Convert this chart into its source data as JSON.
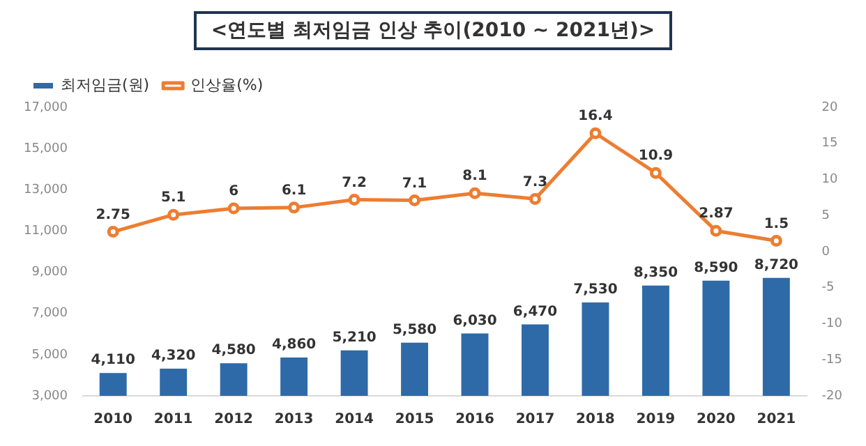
{
  "chart_data": {
    "type": "bar",
    "title": "<연도별 최저임금 인상 추이(2010 ~ 2021년)>",
    "categories": [
      "2010",
      "2011",
      "2012",
      "2013",
      "2014",
      "2015",
      "2016",
      "2017",
      "2018",
      "2019",
      "2020",
      "2021"
    ],
    "series": [
      {
        "name": "최저임금(원)",
        "color": "#2e6aa8",
        "values": [
          4110,
          4320,
          4580,
          4860,
          5210,
          5580,
          6030,
          6470,
          7530,
          8350,
          8590,
          8720
        ],
        "value_labels": [
          "4,110",
          "4,320",
          "4,580",
          "4,860",
          "5,210",
          "5,580",
          "6,030",
          "6,470",
          "7,530",
          "8,350",
          "8,590",
          "8,720"
        ]
      },
      {
        "name": "인상율(%)",
        "type": "line",
        "axis": "y2",
        "color": "#ed7d31",
        "marker": "circle",
        "values": [
          2.75,
          5.1,
          6,
          6.1,
          7.2,
          7.1,
          8.1,
          7.3,
          16.4,
          10.9,
          2.87,
          1.5
        ],
        "value_labels": [
          "2.75",
          "5.1",
          "6",
          "6.1",
          "7.2",
          "7.1",
          "8.1",
          "7.3",
          "16.4",
          "10.9",
          "2.87",
          "1.5"
        ]
      }
    ],
    "ylim": [
      3000,
      17000
    ],
    "yticks": [
      {
        "value": 3000,
        "label": "3,000"
      },
      {
        "value": 5000,
        "label": "5,000"
      },
      {
        "value": 7000,
        "label": "7,000"
      },
      {
        "value": 9000,
        "label": "9,000"
      },
      {
        "value": 11000,
        "label": "11,000"
      },
      {
        "value": 13000,
        "label": "13,000"
      },
      {
        "value": 15000,
        "label": "15,000"
      },
      {
        "value": 17000,
        "label": "17,000"
      }
    ],
    "y2lim": [
      -20,
      20
    ],
    "y2ticks": [
      -20,
      -15,
      -10,
      -5,
      0,
      5,
      10,
      15,
      20
    ],
    "grid": false,
    "legend": "top left"
  }
}
